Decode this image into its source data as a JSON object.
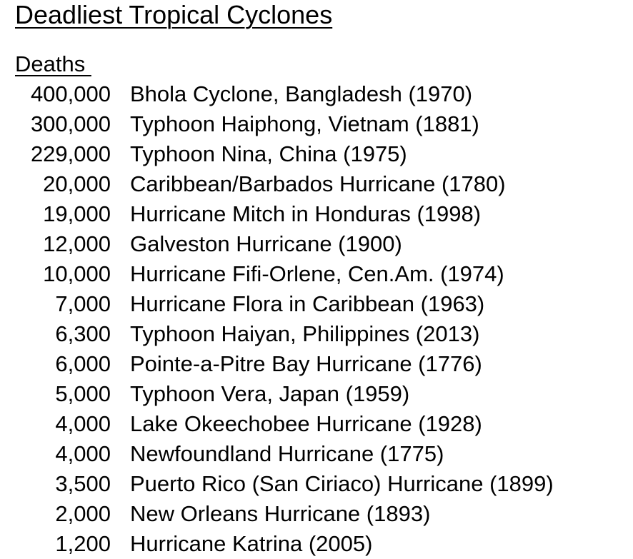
{
  "title": "Deadliest Tropical Cyclones",
  "column_header": "Deaths ",
  "rows": [
    {
      "deaths": "400,000",
      "event": "Bhola Cyclone, Bangladesh (1970)"
    },
    {
      "deaths": "300,000",
      "event": "Typhoon Haiphong, Vietnam (1881)"
    },
    {
      "deaths": "229,000",
      "event": "Typhoon Nina, China (1975)"
    },
    {
      "deaths": "20,000",
      "event": "Caribbean/Barbados Hurricane (1780)"
    },
    {
      "deaths": "19,000",
      "event": "Hurricane Mitch in Honduras (1998)"
    },
    {
      "deaths": "12,000",
      "event": "Galveston Hurricane (1900)"
    },
    {
      "deaths": "10,000",
      "event": "Hurricane Fifi-Orlene, Cen.Am. (1974)"
    },
    {
      "deaths": "7,000",
      "event": "Hurricane Flora in Caribbean (1963)"
    },
    {
      "deaths": "6,300",
      "event": "Typhoon Haiyan, Philippines (2013)"
    },
    {
      "deaths": "6,000",
      "event": "Pointe-a-Pitre Bay Hurricane (1776)"
    },
    {
      "deaths": "5,000",
      "event": "Typhoon Vera, Japan (1959)"
    },
    {
      "deaths": "4,000",
      "event": "Lake Okeechobee Hurricane (1928)"
    },
    {
      "deaths": "4,000",
      "event": "Newfoundland Hurricane (1775)"
    },
    {
      "deaths": "3,500",
      "event": "Puerto Rico (San Ciriaco) Hurricane (1899)"
    },
    {
      "deaths": "2,000",
      "event": "New Orleans Hurricane (1893)"
    },
    {
      "deaths": "1,200",
      "event": "Hurricane Katrina (2005)"
    }
  ]
}
